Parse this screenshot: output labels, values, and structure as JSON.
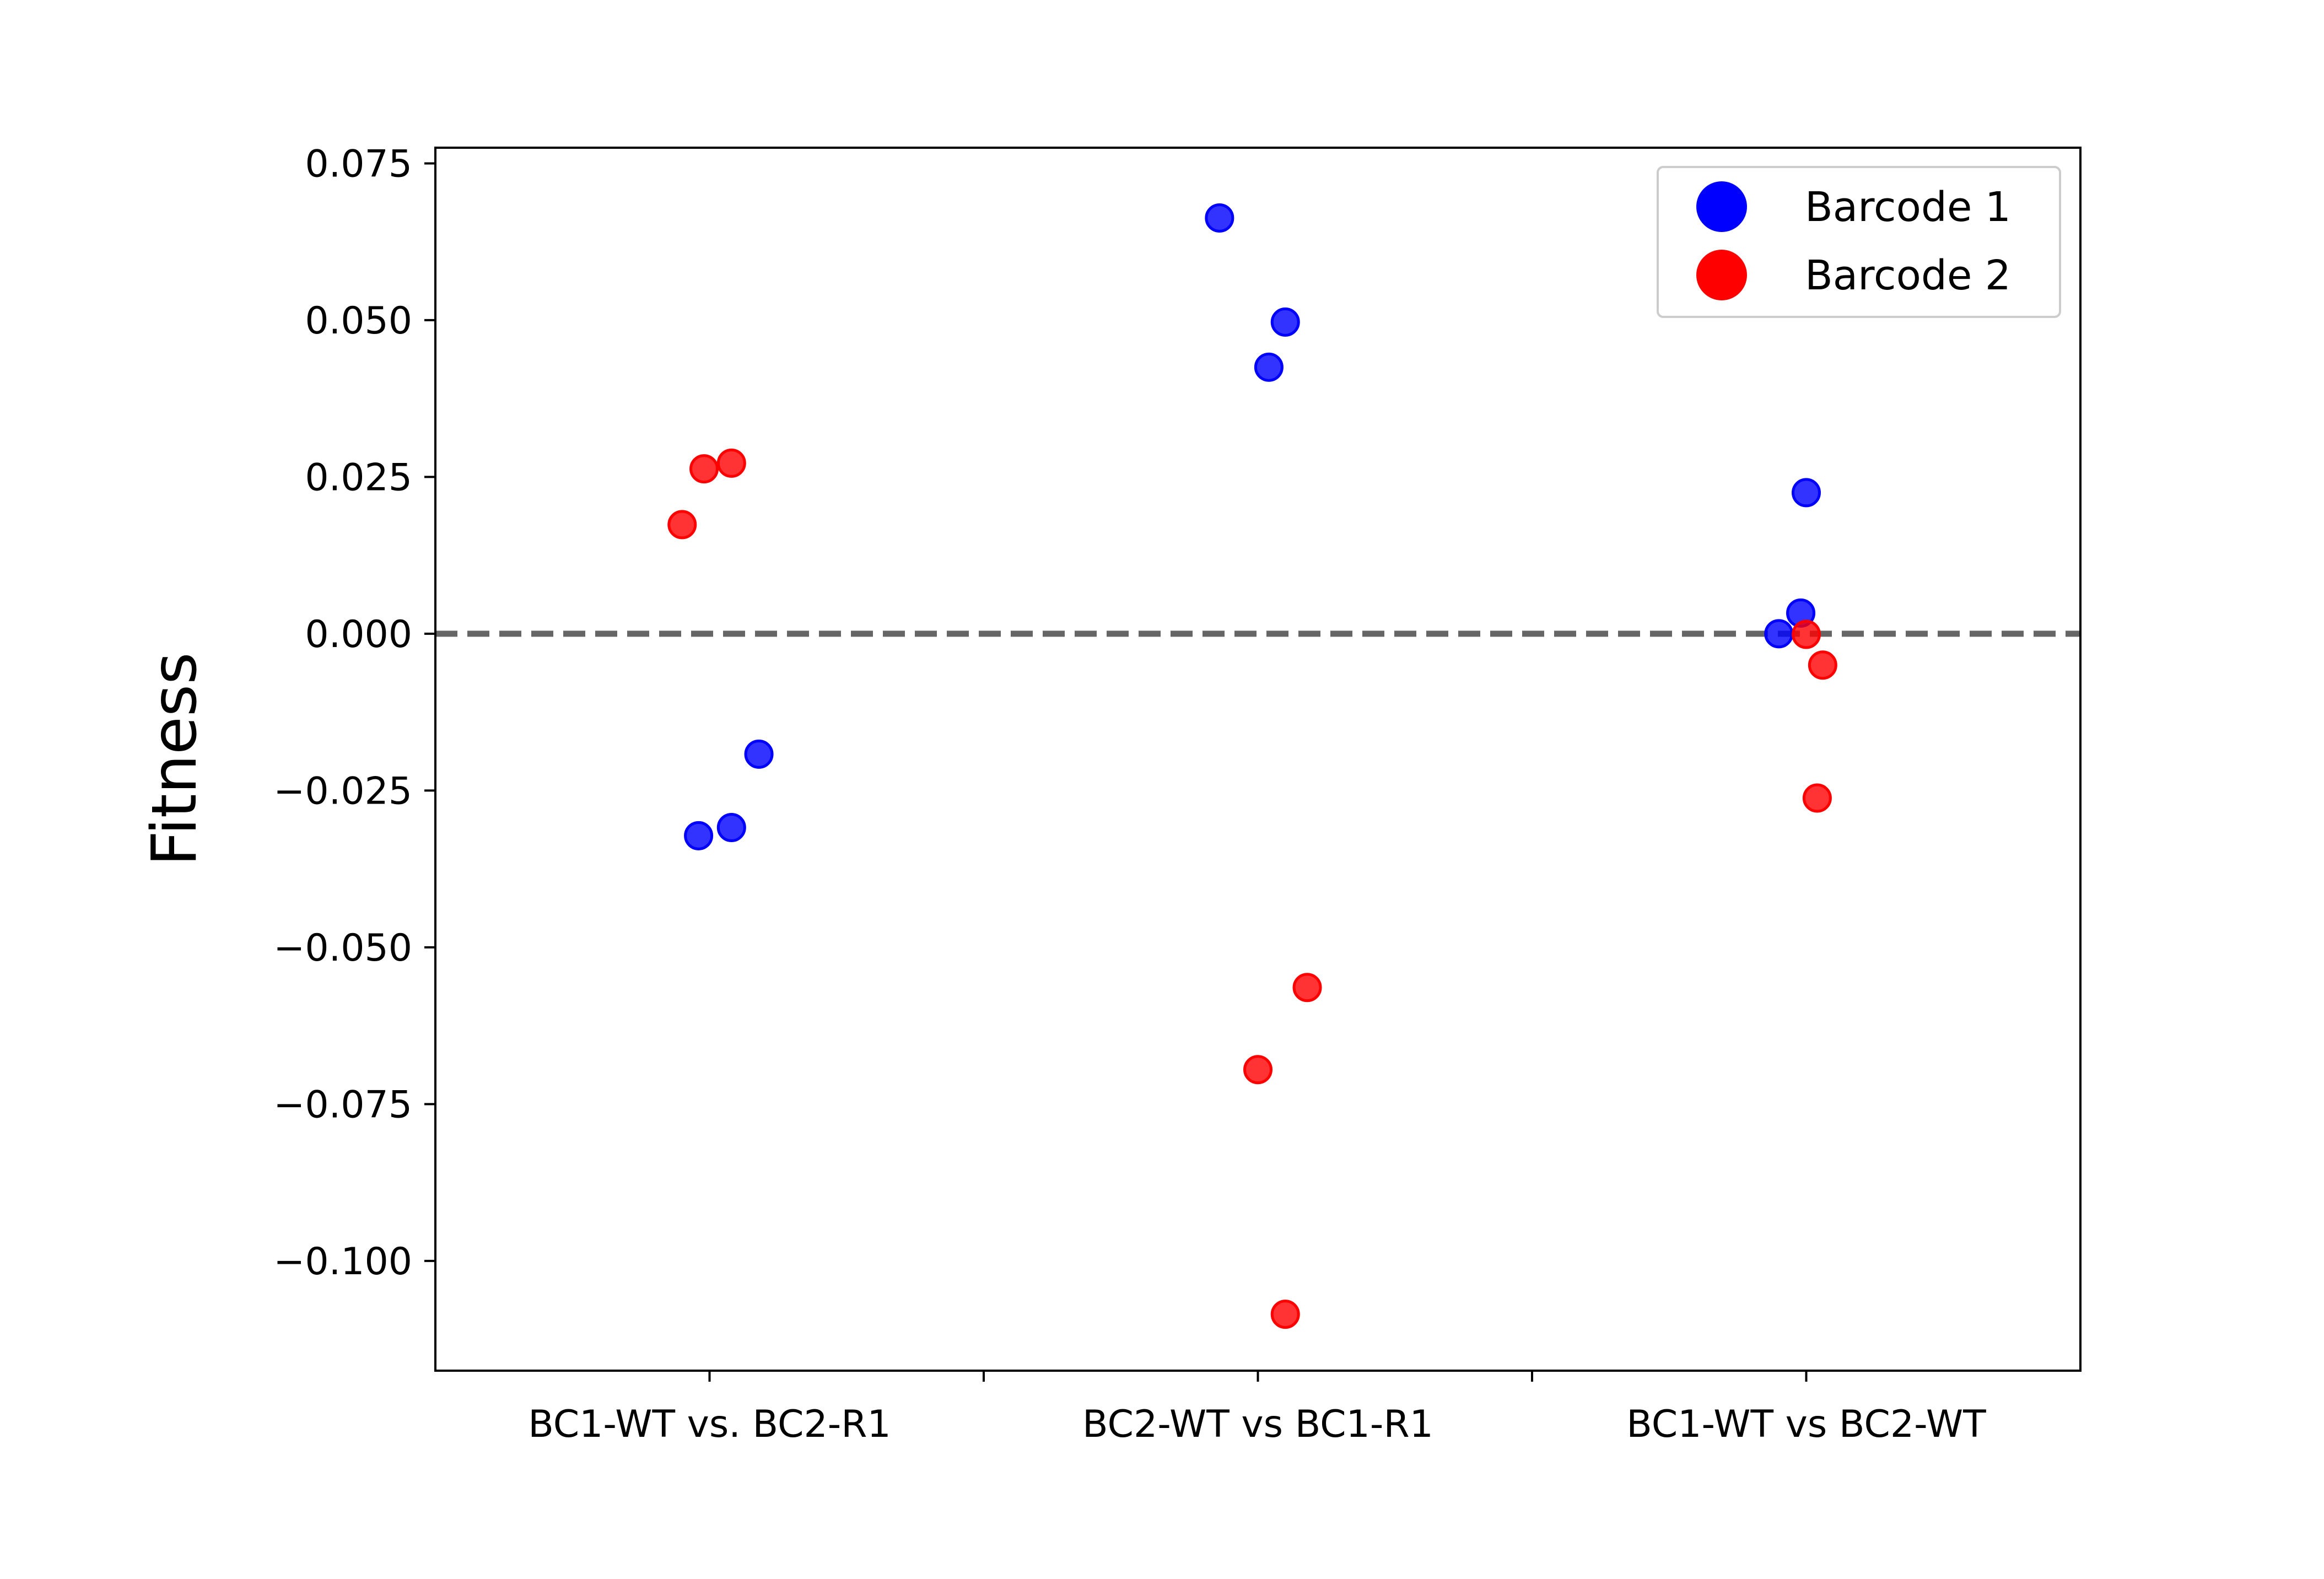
{
  "chart_data": {
    "type": "scatter",
    "title": "",
    "xlabel": "",
    "ylabel": "Fitness",
    "categories": [
      "BC1-WT vs. BC2-R1",
      "BC2-WT vs BC1-R1",
      "BC1-WT vs BC2-WT"
    ],
    "xlim": [
      -0.5,
      2.5
    ],
    "ylim": [
      -0.1175,
      0.0775
    ],
    "yticks": [
      0.075,
      0.05,
      0.025,
      0.0,
      -0.025,
      -0.05,
      -0.075,
      -0.1
    ],
    "ytick_labels": [
      "0.075",
      "0.050",
      "0.025",
      "0.000",
      "−0.025",
      "−0.050",
      "−0.075",
      "−0.100"
    ],
    "grid": false,
    "legend_position": "top-right",
    "reference_line": {
      "y": 0.0,
      "style": "dashed",
      "color": "#666666"
    },
    "series": [
      {
        "name": "Barcode 1",
        "color": "#0000ff",
        "points": [
          {
            "x": -0.02,
            "y": -0.0322
          },
          {
            "x": 0.04,
            "y": -0.0309
          },
          {
            "x": 0.09,
            "y": -0.0192
          },
          {
            "x": 0.93,
            "y": 0.0663
          },
          {
            "x": 1.02,
            "y": 0.0425
          },
          {
            "x": 1.05,
            "y": 0.0497
          },
          {
            "x": 1.95,
            "y": 0.0
          },
          {
            "x": 1.99,
            "y": 0.0033
          },
          {
            "x": 2.0,
            "y": 0.0225
          }
        ]
      },
      {
        "name": "Barcode 2",
        "color": "#ff0000",
        "points": [
          {
            "x": -0.05,
            "y": 0.0174
          },
          {
            "x": -0.01,
            "y": 0.0263
          },
          {
            "x": 0.04,
            "y": 0.0272
          },
          {
            "x": 1.0,
            "y": -0.0695
          },
          {
            "x": 1.05,
            "y": -0.1085
          },
          {
            "x": 1.09,
            "y": -0.0564
          },
          {
            "x": 2.0,
            "y": -0.0001
          },
          {
            "x": 2.02,
            "y": -0.0262
          },
          {
            "x": 2.03,
            "y": -0.005
          }
        ]
      }
    ]
  }
}
